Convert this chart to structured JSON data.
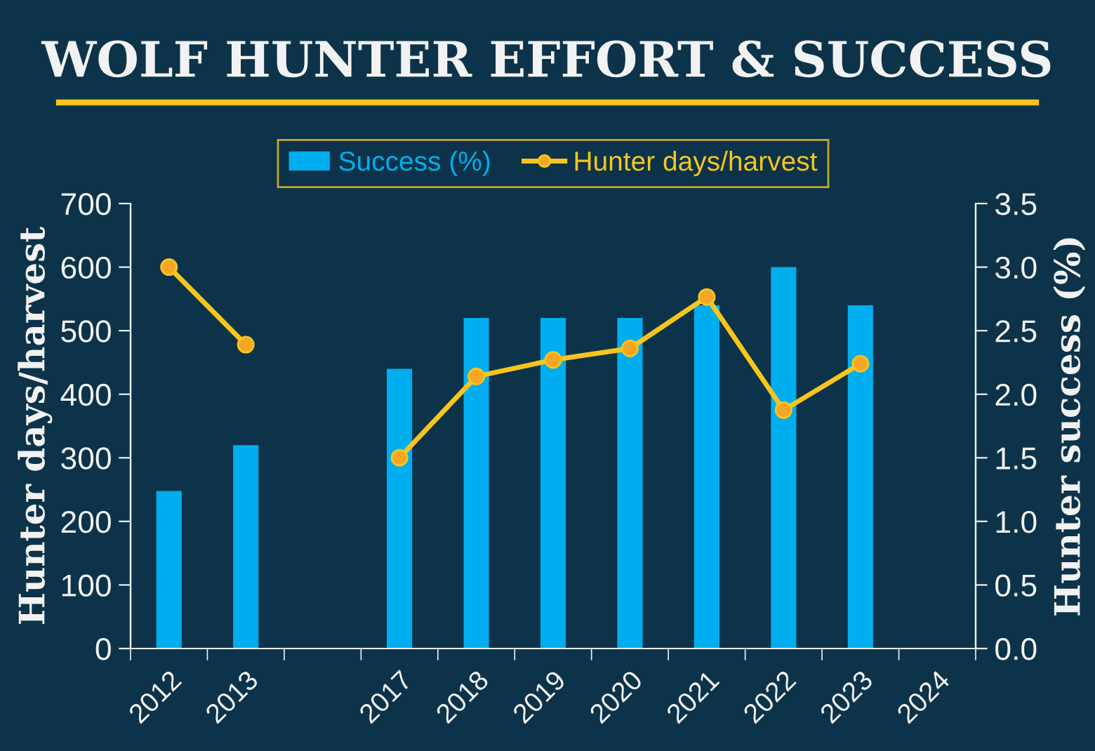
{
  "chart_data": {
    "type": "bar",
    "title": "WOLF HUNTER EFFORT & SUCCESS",
    "categories": [
      "2012",
      "2013",
      null,
      "2017",
      "2018",
      "2019",
      "2020",
      "2021",
      "2022",
      "2023",
      "2024"
    ],
    "series": [
      {
        "name": "Success (%)",
        "axis": "y2",
        "color": "#00aeef",
        "values": [
          1.24,
          1.6,
          null,
          2.2,
          2.6,
          2.6,
          2.6,
          2.7,
          3.0,
          2.7,
          null
        ]
      },
      {
        "name": "Hunter days/harvest",
        "type": "line",
        "color": "#f7c51e",
        "values": [
          600,
          478,
          null,
          300,
          428,
          454,
          472,
          553,
          375,
          448,
          null
        ]
      }
    ],
    "ylabel": "Hunter days/harvest",
    "y2label": "Hunter success (%)",
    "ylim": [
      0,
      700
    ],
    "yticks": [
      0,
      100,
      200,
      300,
      400,
      500,
      600,
      700
    ],
    "y2lim": [
      0,
      3.5
    ],
    "y2ticks": [
      {
        "value": 0,
        "label": "0.0"
      },
      {
        "value": 0.5,
        "label": "0.5"
      },
      {
        "value": 1,
        "label": "1.0"
      },
      {
        "value": 1.5,
        "label": "1.5"
      },
      {
        "value": 2,
        "label": "2.0"
      },
      {
        "value": 2.5,
        "label": "2.5"
      },
      {
        "value": 3,
        "label": "3.0"
      },
      {
        "value": 3.5,
        "label": "3.5"
      }
    ],
    "legend": "top",
    "grid": false,
    "marker": "circle",
    "line_style": "solid"
  }
}
